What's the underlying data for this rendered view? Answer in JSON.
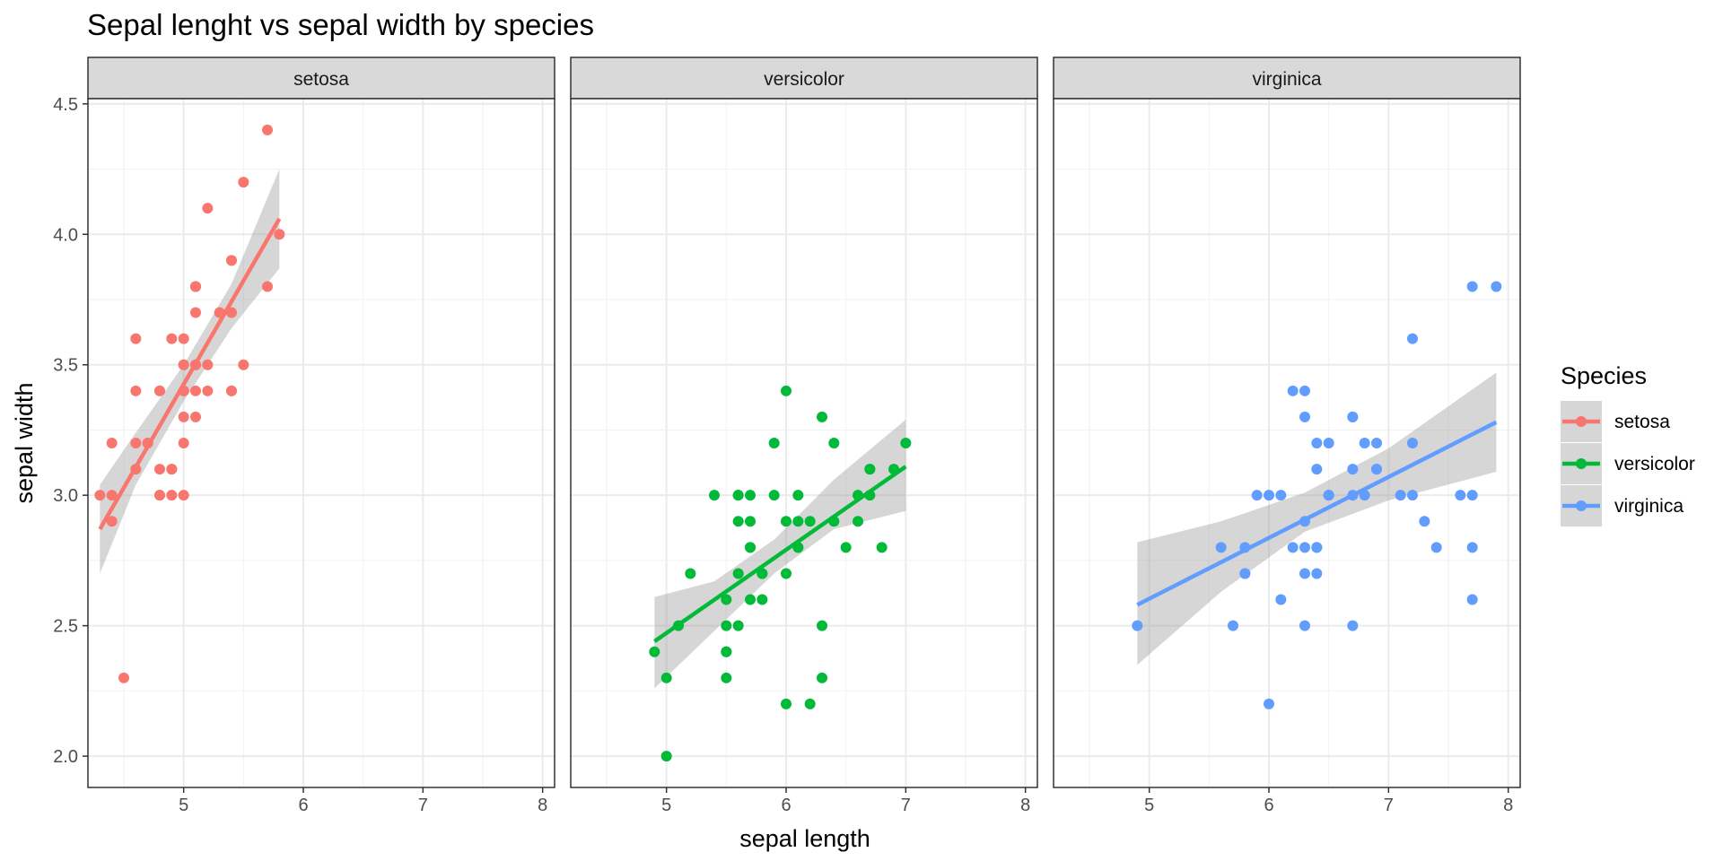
{
  "chart_data": {
    "type": "scatter",
    "title": "Sepal lenght vs sepal width by species",
    "xlabel": "sepal length",
    "ylabel": "sepal width",
    "xlim": [
      4.2,
      8.1
    ],
    "ylim": [
      1.88,
      4.52
    ],
    "x_ticks": [
      5,
      6,
      7,
      8
    ],
    "y_ticks": [
      2.0,
      2.5,
      3.0,
      3.5,
      4.0,
      4.5
    ],
    "y_tick_labels": [
      "2.0",
      "2.5",
      "3.0",
      "3.5",
      "4.0",
      "4.5"
    ],
    "grid": true,
    "legend": {
      "title": "Species",
      "position": "right"
    },
    "panels": [
      {
        "name": "setosa",
        "color": "#F8766D",
        "points": [
          [
            5.1,
            3.5
          ],
          [
            4.9,
            3.0
          ],
          [
            4.7,
            3.2
          ],
          [
            4.6,
            3.1
          ],
          [
            5.0,
            3.6
          ],
          [
            5.4,
            3.9
          ],
          [
            4.6,
            3.4
          ],
          [
            5.0,
            3.4
          ],
          [
            4.4,
            2.9
          ],
          [
            4.9,
            3.1
          ],
          [
            5.4,
            3.7
          ],
          [
            4.8,
            3.4
          ],
          [
            4.8,
            3.0
          ],
          [
            4.3,
            3.0
          ],
          [
            5.8,
            4.0
          ],
          [
            5.7,
            4.4
          ],
          [
            5.4,
            3.9
          ],
          [
            5.1,
            3.5
          ],
          [
            5.7,
            3.8
          ],
          [
            5.1,
            3.8
          ],
          [
            5.4,
            3.4
          ],
          [
            5.1,
            3.7
          ],
          [
            4.6,
            3.6
          ],
          [
            5.1,
            3.3
          ],
          [
            4.8,
            3.4
          ],
          [
            5.0,
            3.0
          ],
          [
            5.0,
            3.4
          ],
          [
            5.2,
            3.5
          ],
          [
            5.2,
            3.4
          ],
          [
            4.7,
            3.2
          ],
          [
            4.8,
            3.1
          ],
          [
            5.4,
            3.4
          ],
          [
            5.2,
            4.1
          ],
          [
            5.5,
            4.2
          ],
          [
            4.9,
            3.1
          ],
          [
            5.0,
            3.2
          ],
          [
            5.5,
            3.5
          ],
          [
            4.9,
            3.6
          ],
          [
            4.4,
            3.0
          ],
          [
            5.1,
            3.4
          ],
          [
            5.0,
            3.5
          ],
          [
            4.5,
            2.3
          ],
          [
            4.4,
            3.2
          ],
          [
            5.0,
            3.5
          ],
          [
            5.1,
            3.8
          ],
          [
            4.8,
            3.0
          ],
          [
            5.1,
            3.8
          ],
          [
            4.6,
            3.2
          ],
          [
            5.3,
            3.7
          ],
          [
            5.0,
            3.3
          ]
        ],
        "fit": {
          "x": [
            4.3,
            5.8
          ],
          "y": [
            2.87,
            4.06
          ]
        },
        "band": {
          "x": [
            4.3,
            4.6,
            5.0,
            5.4,
            5.8
          ],
          "lower": [
            2.7,
            3.04,
            3.36,
            3.64,
            3.87
          ],
          "upper": [
            3.04,
            3.24,
            3.5,
            3.81,
            4.25
          ]
        }
      },
      {
        "name": "versicolor",
        "color": "#00BA38",
        "points": [
          [
            7.0,
            3.2
          ],
          [
            6.4,
            3.2
          ],
          [
            6.9,
            3.1
          ],
          [
            5.5,
            2.3
          ],
          [
            6.5,
            2.8
          ],
          [
            5.7,
            2.8
          ],
          [
            6.3,
            3.3
          ],
          [
            4.9,
            2.4
          ],
          [
            6.6,
            2.9
          ],
          [
            5.2,
            2.7
          ],
          [
            5.0,
            2.0
          ],
          [
            5.9,
            3.0
          ],
          [
            6.0,
            2.2
          ],
          [
            6.1,
            2.9
          ],
          [
            5.6,
            2.9
          ],
          [
            6.7,
            3.1
          ],
          [
            5.6,
            3.0
          ],
          [
            5.8,
            2.7
          ],
          [
            6.2,
            2.2
          ],
          [
            5.6,
            2.5
          ],
          [
            5.9,
            3.2
          ],
          [
            6.1,
            2.8
          ],
          [
            6.3,
            2.5
          ],
          [
            6.1,
            2.8
          ],
          [
            6.4,
            2.9
          ],
          [
            6.6,
            3.0
          ],
          [
            6.8,
            2.8
          ],
          [
            6.7,
            3.0
          ],
          [
            6.0,
            2.9
          ],
          [
            5.7,
            2.6
          ],
          [
            5.5,
            2.4
          ],
          [
            5.5,
            2.4
          ],
          [
            5.8,
            2.7
          ],
          [
            6.0,
            2.7
          ],
          [
            5.4,
            3.0
          ],
          [
            6.0,
            3.4
          ],
          [
            6.7,
            3.1
          ],
          [
            6.3,
            2.3
          ],
          [
            5.6,
            3.0
          ],
          [
            5.5,
            2.5
          ],
          [
            5.5,
            2.6
          ],
          [
            6.1,
            3.0
          ],
          [
            5.8,
            2.6
          ],
          [
            5.0,
            2.3
          ],
          [
            5.6,
            2.7
          ],
          [
            5.7,
            3.0
          ],
          [
            5.7,
            2.9
          ],
          [
            6.2,
            2.9
          ],
          [
            5.1,
            2.5
          ],
          [
            5.7,
            2.8
          ]
        ],
        "fit": {
          "x": [
            4.9,
            7.0
          ],
          "y": [
            2.44,
            3.11
          ]
        },
        "band": {
          "x": [
            4.9,
            5.4,
            5.9,
            6.4,
            7.0
          ],
          "lower": [
            2.26,
            2.48,
            2.7,
            2.87,
            2.94
          ],
          "upper": [
            2.61,
            2.67,
            2.83,
            3.06,
            3.29
          ]
        }
      },
      {
        "name": "virginica",
        "color": "#619CFF",
        "points": [
          [
            6.3,
            3.3
          ],
          [
            5.8,
            2.7
          ],
          [
            7.1,
            3.0
          ],
          [
            6.3,
            2.9
          ],
          [
            6.5,
            3.0
          ],
          [
            7.6,
            3.0
          ],
          [
            4.9,
            2.5
          ],
          [
            7.3,
            2.9
          ],
          [
            6.7,
            2.5
          ],
          [
            7.2,
            3.6
          ],
          [
            6.5,
            3.2
          ],
          [
            6.4,
            2.7
          ],
          [
            6.8,
            3.0
          ],
          [
            5.7,
            2.5
          ],
          [
            5.8,
            2.8
          ],
          [
            6.4,
            3.2
          ],
          [
            6.5,
            3.0
          ],
          [
            7.7,
            3.8
          ],
          [
            7.7,
            2.6
          ],
          [
            6.0,
            2.2
          ],
          [
            6.9,
            3.2
          ],
          [
            5.6,
            2.8
          ],
          [
            7.7,
            2.8
          ],
          [
            6.3,
            2.7
          ],
          [
            6.7,
            3.3
          ],
          [
            7.2,
            3.2
          ],
          [
            6.2,
            2.8
          ],
          [
            6.1,
            3.0
          ],
          [
            6.4,
            2.8
          ],
          [
            7.2,
            3.0
          ],
          [
            7.4,
            2.8
          ],
          [
            7.9,
            3.8
          ],
          [
            6.4,
            2.8
          ],
          [
            6.3,
            2.8
          ],
          [
            6.1,
            2.6
          ],
          [
            7.7,
            3.0
          ],
          [
            6.3,
            3.4
          ],
          [
            6.4,
            3.1
          ],
          [
            6.0,
            3.0
          ],
          [
            6.9,
            3.1
          ],
          [
            6.7,
            3.1
          ],
          [
            6.9,
            3.1
          ],
          [
            5.8,
            2.7
          ],
          [
            6.8,
            3.2
          ],
          [
            6.7,
            3.3
          ],
          [
            6.7,
            3.0
          ],
          [
            6.3,
            2.5
          ],
          [
            6.5,
            3.0
          ],
          [
            6.2,
            3.4
          ],
          [
            5.9,
            3.0
          ]
        ],
        "fit": {
          "x": [
            4.9,
            7.9
          ],
          "y": [
            2.58,
            3.28
          ]
        },
        "band": {
          "x": [
            4.9,
            5.6,
            6.3,
            7.0,
            7.9
          ],
          "lower": [
            2.35,
            2.63,
            2.86,
            2.98,
            3.09
          ],
          "upper": [
            2.82,
            2.9,
            3.01,
            3.18,
            3.47
          ]
        }
      }
    ]
  }
}
